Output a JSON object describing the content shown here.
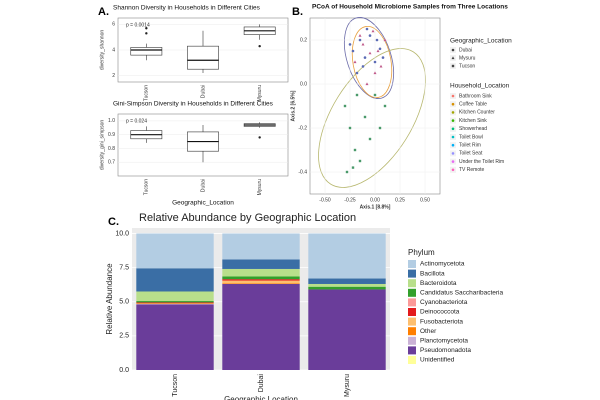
{
  "chart_data": [
    {
      "type": "box",
      "panel_label": "A.",
      "title": "Shannon Diversity in Households in Different Cities",
      "y_label": "diversity_shannon",
      "annotation": "p = 0.0014",
      "categories": [
        "Tucson",
        "Dubai",
        "Mysuru"
      ],
      "boxes": [
        {
          "min": 3.2,
          "q1": 3.6,
          "median": 4.0,
          "q3": 4.2,
          "max": 4.5,
          "outliers": [
            5.3,
            5.7
          ]
        },
        {
          "min": 2.2,
          "q1": 2.5,
          "median": 3.2,
          "q3": 4.3,
          "max": 5.5,
          "outliers": []
        },
        {
          "min": 4.8,
          "q1": 5.2,
          "median": 5.5,
          "q3": 5.8,
          "max": 6.0,
          "outliers": [
            4.3
          ]
        }
      ],
      "ylim": [
        1.5,
        6.5
      ],
      "yticks": [
        2,
        4,
        6
      ],
      "grid": true
    },
    {
      "type": "box",
      "title": "Gini-Simpson Diversity in Households in Different Cities",
      "y_label": "diversity_gini_simpson",
      "x_label": "Geographic_Location",
      "annotation": "p = 0.024",
      "categories": [
        "Tucson",
        "Dubai",
        "Mysuru"
      ],
      "boxes": [
        {
          "min": 0.84,
          "q1": 0.87,
          "median": 0.9,
          "q3": 0.93,
          "max": 0.96,
          "outliers": []
        },
        {
          "min": 0.7,
          "q1": 0.78,
          "median": 0.85,
          "q3": 0.92,
          "max": 0.97,
          "outliers": []
        },
        {
          "min": 0.95,
          "q1": 0.96,
          "median": 0.97,
          "q3": 0.98,
          "max": 0.99,
          "outliers": [
            0.88
          ]
        }
      ],
      "ylim": [
        0.6,
        1.05
      ],
      "yticks": [
        0.7,
        0.8,
        0.9,
        {
          "value": 1.0,
          "label": "1.0"
        }
      ],
      "grid": true
    },
    {
      "type": "scatter",
      "panel_label": "B.",
      "title": "PCoA of Household Microbiome Samples from Three Locations",
      "x_label": "Axis.1  [8.8%]",
      "y_label": "Axis.2  [6.5%]",
      "legend_title": "Geographic_Location",
      "series": [
        {
          "name": "Dubai",
          "shape": "circle",
          "color": "#5b6bb5",
          "x": [
            -0.22,
            -0.15,
            -0.1,
            -0.05,
            0.0,
            0.05,
            -0.18,
            -0.08,
            0.02,
            -0.12,
            0.08,
            -0.25
          ],
          "y": [
            0.15,
            0.2,
            0.12,
            0.22,
            0.1,
            0.16,
            0.05,
            0.25,
            0.2,
            0.08,
            0.12,
            0.18
          ]
        },
        {
          "name": "Mysuru",
          "shape": "triangle",
          "color": "#c05a8a",
          "x": [
            -0.2,
            -0.12,
            -0.05,
            0.0,
            0.06,
            0.1,
            -0.15,
            -0.02,
            0.03,
            -0.08
          ],
          "y": [
            0.1,
            0.18,
            0.14,
            0.05,
            0.08,
            0.2,
            0.22,
            0.24,
            0.15,
            0.0
          ]
        },
        {
          "name": "Tucson",
          "shape": "square",
          "color": "#4a9a6a",
          "x": [
            -0.3,
            -0.25,
            -0.2,
            -0.15,
            -0.1,
            -0.05,
            0.0,
            0.1,
            -0.28,
            -0.18,
            0.05,
            -0.22
          ],
          "y": [
            -0.1,
            -0.2,
            -0.3,
            -0.35,
            -0.15,
            -0.25,
            -0.05,
            -0.1,
            -0.4,
            -0.05,
            -0.2,
            -0.38
          ]
        }
      ],
      "legend2": {
        "title": "Household_Location",
        "items": [
          {
            "name": "Bathroom Sink",
            "color": "#f8766d"
          },
          {
            "name": "Coffee Table",
            "color": "#d89000"
          },
          {
            "name": "Kitchen Counter",
            "color": "#a3a500"
          },
          {
            "name": "Kitchen Sink",
            "color": "#39b600"
          },
          {
            "name": "Showerhead",
            "color": "#00bf7d"
          },
          {
            "name": "Toilet Bowl",
            "color": "#00bfc4"
          },
          {
            "name": "Toilet Rim",
            "color": "#00b0f6"
          },
          {
            "name": "Toilet Seat",
            "color": "#9590ff"
          },
          {
            "name": "Under the Toilet Rim",
            "color": "#e76bf3"
          },
          {
            "name": "TV Remote",
            "color": "#ff62bc"
          }
        ]
      },
      "xlim": [
        -0.65,
        0.65
      ],
      "ylim": [
        -0.5,
        0.3
      ],
      "xticks": [
        {
          "value": -0.5,
          "label": "-0.50"
        },
        -0.25,
        {
          "value": 0,
          "label": "0.00"
        },
        0.25,
        {
          "value": 0.5,
          "label": "0.50"
        }
      ],
      "yticks": [
        0.2,
        {
          "value": 0,
          "label": "0.0"
        },
        -0.2,
        -0.4
      ],
      "grid": true
    },
    {
      "type": "stacked_bar",
      "panel_label": "C.",
      "title": "Relative Abundance by Geographic Location",
      "x_label": "Geographic Location",
      "y_label": "Relative Abundance",
      "legend_title": "Phylum",
      "categories": [
        "Tucson",
        "Dubai",
        "Mysuru"
      ],
      "series": [
        {
          "name": "Actinomycetota",
          "color": "#b3cde3",
          "values": [
            2.55,
            1.9,
            3.3
          ]
        },
        {
          "name": "Bacillota",
          "color": "#3a6ea5",
          "values": [
            1.7,
            0.7,
            0.4
          ]
        },
        {
          "name": "Bacteroidota",
          "color": "#b8df8b",
          "values": [
            0.7,
            0.55,
            0.2
          ]
        },
        {
          "name": "Candidatus Saccharibacteria",
          "color": "#33a02c",
          "values": [
            0.1,
            0.2,
            0.2
          ]
        },
        {
          "name": "Cyanobacteriota",
          "color": "#fb9a99",
          "values": [
            0,
            0,
            0
          ]
        },
        {
          "name": "Deinococcota",
          "color": "#e31a1c",
          "values": [
            0.05,
            0.1,
            0
          ]
        },
        {
          "name": "Fusobacteriota",
          "color": "#fdbf6f",
          "values": [
            0,
            0.2,
            0
          ]
        },
        {
          "name": "Other",
          "color": "#ff7f00",
          "values": [
            0.05,
            0.05,
            0
          ]
        },
        {
          "name": "Planctomycetota",
          "color": "#cab2d6",
          "values": [
            0.05,
            0,
            0
          ]
        },
        {
          "name": "Pseudomonadota",
          "color": "#6a3d9a",
          "values": [
            4.8,
            6.3,
            5.9
          ]
        },
        {
          "name": "Unidentified",
          "color": "#ffff99",
          "values": [
            0,
            0,
            0
          ]
        }
      ],
      "ylim": [
        0,
        10.4
      ],
      "yticks": [
        {
          "value": 0,
          "label": "0.0"
        },
        2.5,
        {
          "value": 5,
          "label": "5.0"
        },
        7.5,
        {
          "value": 10,
          "label": "10.0"
        }
      ],
      "grid": true
    }
  ]
}
